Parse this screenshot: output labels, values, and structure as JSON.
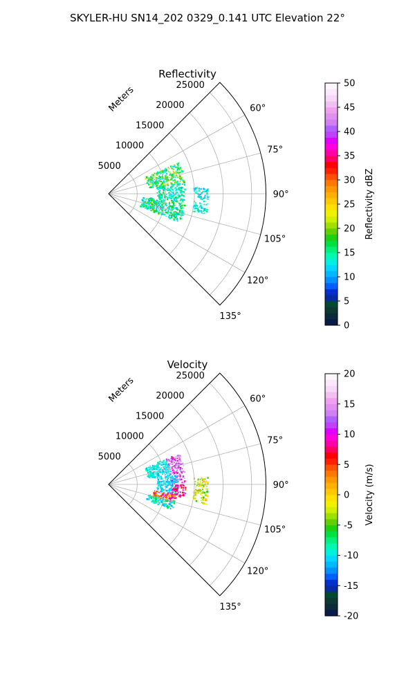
{
  "figure": {
    "suptitle": "SKYLER-HU  SN14_202  0329_0.141 UTC Elevation 22°"
  },
  "chart_data": [
    {
      "type": "heatmap",
      "projection": "polar-sector",
      "title": "Reflectivity",
      "radial_label": "Meters",
      "radial_ticks": [
        5000,
        10000,
        15000,
        20000,
        25000
      ],
      "radial_tick_labels": [
        "5000",
        "10000",
        "15000",
        "20000",
        "25000"
      ],
      "radial_range": [
        0,
        27500
      ],
      "azimuth_range": [
        45,
        135
      ],
      "azimuth_ticks": [
        60,
        75,
        90,
        105,
        120,
        135
      ],
      "azimuth_tick_labels": [
        "60°",
        "75°",
        "90°",
        "105°",
        "120°",
        "135°"
      ],
      "grid": true,
      "colorbar": {
        "label": "Reflectivity dBZ",
        "range": [
          0,
          50
        ],
        "ticks": [
          0,
          5,
          10,
          15,
          20,
          25,
          30,
          35,
          40,
          45,
          50
        ],
        "tick_labels": [
          "0",
          "5",
          "10",
          "15",
          "20",
          "25",
          "30",
          "35",
          "40",
          "45",
          "50"
        ]
      },
      "echo_regions": [
        {
          "az": [
            66,
            82
          ],
          "r": [
            7000,
            13500
          ],
          "value": [
            12,
            22
          ]
        },
        {
          "az": [
            82,
            96
          ],
          "r": [
            8500,
            13500
          ],
          "value": [
            10,
            18
          ]
        },
        {
          "az": [
            96,
            112
          ],
          "r": [
            6000,
            13500
          ],
          "value": [
            10,
            20
          ]
        },
        {
          "az": [
            86,
            102
          ],
          "r": [
            15000,
            17500
          ],
          "value": [
            10,
            16
          ]
        }
      ]
    },
    {
      "type": "heatmap",
      "projection": "polar-sector",
      "title": "Velocity",
      "radial_label": "Meters",
      "radial_ticks": [
        5000,
        10000,
        15000,
        20000,
        25000
      ],
      "radial_tick_labels": [
        "5000",
        "10000",
        "15000",
        "20000",
        "25000"
      ],
      "radial_range": [
        0,
        27500
      ],
      "azimuth_range": [
        45,
        135
      ],
      "azimuth_ticks": [
        60,
        75,
        90,
        105,
        120,
        135
      ],
      "azimuth_tick_labels": [
        "60°",
        "75°",
        "90°",
        "105°",
        "120°",
        "135°"
      ],
      "grid": true,
      "colorbar": {
        "label": "Velocity (m/s)",
        "range": [
          -20,
          20
        ],
        "ticks": [
          -20,
          -15,
          -10,
          -5,
          0,
          5,
          10,
          15,
          20
        ],
        "tick_labels": [
          "-20",
          "-15",
          "-10",
          "-5",
          "0",
          "5",
          "10",
          "15",
          "20"
        ]
      },
      "echo_regions": [
        {
          "az": [
            66,
            82
          ],
          "r": [
            7000,
            11000
          ],
          "value": [
            -12,
            -8
          ]
        },
        {
          "az": [
            66,
            90
          ],
          "r": [
            11000,
            13500
          ],
          "value": [
            8,
            16
          ]
        },
        {
          "az": [
            82,
            98
          ],
          "r": [
            8500,
            12000
          ],
          "value": [
            -12,
            -9
          ]
        },
        {
          "az": [
            90,
            100
          ],
          "r": [
            11000,
            13500
          ],
          "value": [
            4,
            12
          ]
        },
        {
          "az": [
            98,
            106
          ],
          "r": [
            8000,
            12000
          ],
          "value": [
            0,
            12
          ]
        },
        {
          "az": [
            104,
            112
          ],
          "r": [
            7000,
            12000
          ],
          "value": [
            -12,
            -6
          ]
        },
        {
          "az": [
            86,
            102
          ],
          "r": [
            15000,
            17500
          ],
          "value": [
            -6,
            2
          ]
        }
      ]
    }
  ]
}
